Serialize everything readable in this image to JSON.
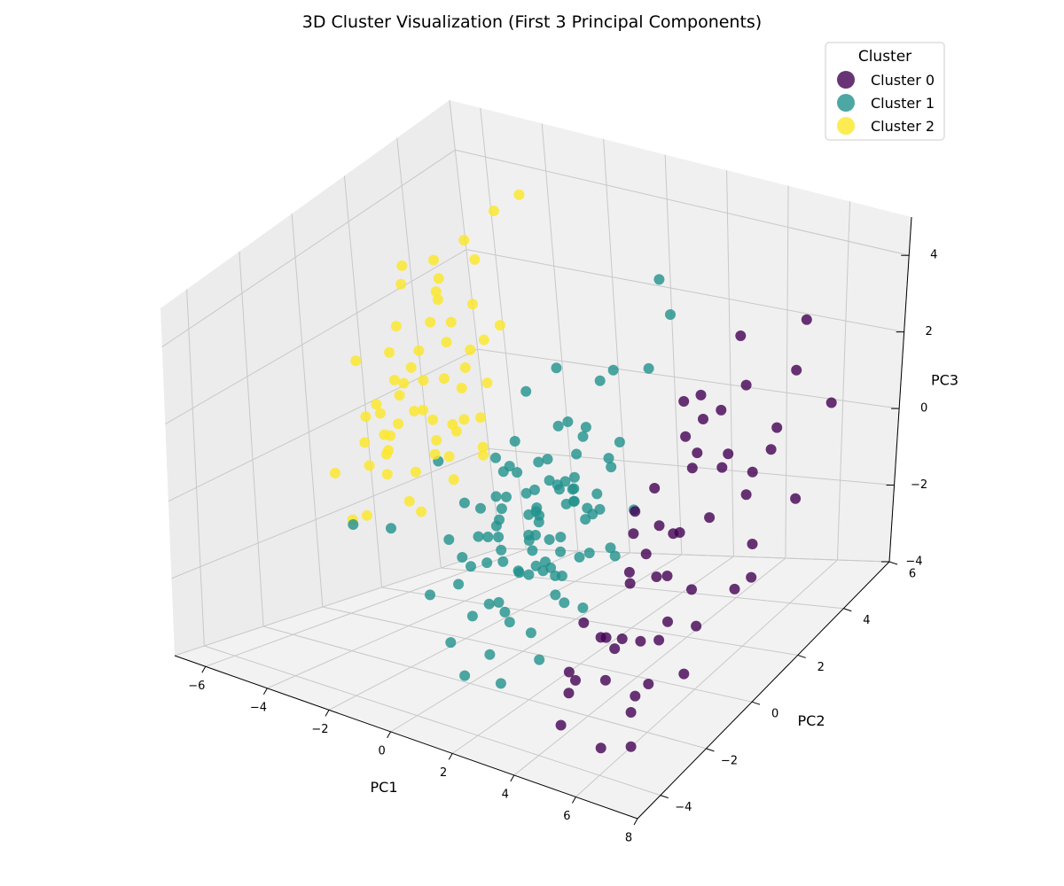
{
  "chart_data": {
    "type": "scatter",
    "title": "3D Cluster Visualization (First 3 Principal Components)",
    "xlabel": "PC1",
    "ylabel": "PC2",
    "zlabel": "PC3",
    "xlim": [
      -7,
      8
    ],
    "ylim": [
      -5,
      6
    ],
    "zlim": [
      -4,
      5
    ],
    "xticks": [
      -6,
      -4,
      -2,
      0,
      2,
      4,
      6,
      8
    ],
    "yticks": [
      -4,
      -2,
      0,
      2,
      4,
      6
    ],
    "zticks": [
      -4,
      -2,
      0,
      2,
      4
    ],
    "grid": true,
    "legend": {
      "title": "Cluster",
      "position": "top-right"
    },
    "series": [
      {
        "name": "Cluster 0",
        "color": "#440154",
        "points": [
          [
            5.2,
            -1.5,
            -3.5
          ],
          [
            4.8,
            -2.2,
            -2.8
          ],
          [
            5.8,
            -1.2,
            -2.1
          ],
          [
            4.2,
            -0.8,
            -2.6
          ],
          [
            6.1,
            -2.8,
            -3.9
          ],
          [
            3.8,
            -2.5,
            -3.2
          ],
          [
            5.5,
            0.5,
            -1.8
          ],
          [
            4.5,
            1.2,
            -0.9
          ],
          [
            6.5,
            1.8,
            -1.2
          ],
          [
            5.1,
            2.2,
            0.3
          ],
          [
            4.2,
            2.5,
            1.2
          ],
          [
            6.8,
            3.2,
            -0.8
          ],
          [
            5.6,
            3.8,
            0.5
          ],
          [
            7.2,
            4.1,
            1.2
          ],
          [
            3.5,
            1.0,
            -1.5
          ],
          [
            4.8,
            -1.8,
            -2.2
          ],
          [
            5.9,
            0.2,
            -2.5
          ],
          [
            3.2,
            -0.5,
            -2.9
          ],
          [
            6.3,
            -0.8,
            -3.1
          ],
          [
            4.1,
            -3.2,
            -3.6
          ],
          [
            5.4,
            2.8,
            2.1
          ],
          [
            4.6,
            3.5,
            2.8
          ],
          [
            6.2,
            4.2,
            3.1
          ],
          [
            5.0,
            1.5,
            2.5
          ],
          [
            3.9,
            2.1,
            1.8
          ],
          [
            4.9,
            -0.2,
            -1.2
          ],
          [
            5.7,
            1.0,
            -0.2
          ],
          [
            4.4,
            0.8,
            -1.8
          ],
          [
            3.6,
            -1.6,
            -1.9
          ],
          [
            6.0,
            -1.9,
            -2.8
          ],
          [
            4.3,
            -0.3,
            0.4
          ],
          [
            5.3,
            0.8,
            1.1
          ],
          [
            3.7,
            0.3,
            -0.6
          ],
          [
            6.6,
            2.4,
            0.9
          ],
          [
            4.7,
            2.9,
            0.2
          ],
          [
            5.8,
            -2.4,
            -3.3
          ],
          [
            4.0,
            -1.2,
            -2.4
          ],
          [
            3.4,
            -2.0,
            -3.0
          ],
          [
            6.9,
            0.6,
            -1.6
          ],
          [
            5.2,
            3.3,
            -0.4
          ],
          [
            4.6,
            1.8,
            0.8
          ],
          [
            3.3,
            1.6,
            -0.2
          ],
          [
            5.6,
            -0.6,
            -2.0
          ],
          [
            4.9,
            2.4,
            1.6
          ],
          [
            6.4,
            3.6,
            2.2
          ],
          [
            3.1,
            0.8,
            -2.2
          ],
          [
            4.3,
            -2.8,
            -2.6
          ],
          [
            5.5,
            -3.3,
            -3.8
          ],
          [
            6.7,
            1.3,
            0.4
          ],
          [
            4.1,
            1.4,
            -1.1
          ],
          [
            3.8,
            0.0,
            -1.4
          ],
          [
            5.0,
            -1.0,
            -2.4
          ],
          [
            4.5,
            0.4,
            -0.3
          ],
          [
            6.3,
            2.0,
            -2.2
          ],
          [
            3.5,
            2.6,
            0.6
          ]
        ]
      },
      {
        "name": "Cluster 1",
        "color": "#21918c",
        "points": [
          [
            0.5,
            0.2,
            -0.5
          ],
          [
            1.2,
            0.8,
            -0.2
          ],
          [
            -0.3,
            -0.4,
            -1.1
          ],
          [
            0.8,
            -0.9,
            -1.5
          ],
          [
            1.6,
            0.1,
            0.4
          ],
          [
            0.1,
            1.1,
            0.2
          ],
          [
            -0.8,
            0.3,
            -0.8
          ],
          [
            1.9,
            -0.5,
            -1.0
          ],
          [
            0.4,
            -1.6,
            -2.1
          ],
          [
            2.3,
            0.6,
            -0.4
          ],
          [
            -1.2,
            -0.8,
            -1.6
          ],
          [
            1.0,
            1.6,
            0.9
          ],
          [
            0.0,
            -0.2,
            0.6
          ],
          [
            2.6,
            -1.2,
            -1.8
          ],
          [
            -0.5,
            1.4,
            -0.1
          ],
          [
            1.4,
            -0.2,
            -2.3
          ],
          [
            0.7,
            0.9,
            1.2
          ],
          [
            -1.6,
            -0.2,
            -0.6
          ],
          [
            2.0,
            1.4,
            0.2
          ],
          [
            0.3,
            -1.1,
            -0.4
          ],
          [
            1.7,
            -1.5,
            -2.6
          ],
          [
            -0.1,
            0.5,
            -1.4
          ],
          [
            0.9,
            -0.6,
            0.3
          ],
          [
            2.9,
            0.3,
            -1.1
          ],
          [
            -0.9,
            -1.3,
            -2.0
          ],
          [
            1.1,
            0.4,
            -1.2
          ],
          [
            0.2,
            1.8,
            0.8
          ],
          [
            1.5,
            1.0,
            -0.7
          ],
          [
            -0.4,
            -0.9,
            -0.2
          ],
          [
            2.2,
            -0.8,
            -1.4
          ],
          [
            0.6,
            -0.3,
            -1.9
          ],
          [
            -1.4,
            0.8,
            0.1
          ],
          [
            1.8,
            0.2,
            -0.1
          ],
          [
            0.0,
            -1.8,
            -2.4
          ],
          [
            2.5,
            1.2,
            1.0
          ],
          [
            -0.7,
            0.1,
            -1.7
          ],
          [
            1.3,
            -1.0,
            -0.6
          ],
          [
            0.5,
            1.3,
            -0.9
          ],
          [
            -0.2,
            -0.6,
            -2.6
          ],
          [
            2.1,
            -0.1,
            0.7
          ],
          [
            3.0,
            1.8,
            2.6
          ],
          [
            3.4,
            2.2,
            3.8
          ],
          [
            2.7,
            2.6,
            4.3
          ],
          [
            1.9,
            1.7,
            2.4
          ],
          [
            0.8,
            2.4,
            1.6
          ],
          [
            -1.0,
            1.6,
            1.4
          ],
          [
            -3.5,
            -0.9,
            -1.3
          ],
          [
            -4.5,
            -1.2,
            -1.3
          ],
          [
            -2.4,
            0.0,
            -1.7
          ],
          [
            -3.0,
            0.4,
            -0.1
          ],
          [
            0.9,
            -2.2,
            -3.0
          ],
          [
            1.6,
            -2.6,
            -3.4
          ],
          [
            -0.6,
            -2.0,
            -3.1
          ],
          [
            2.4,
            -2.0,
            -2.9
          ],
          [
            0.2,
            -2.4,
            -3.6
          ],
          [
            1.2,
            -1.9,
            -2.0
          ],
          [
            -1.8,
            -1.4,
            -2.4
          ],
          [
            3.2,
            0.9,
            -0.4
          ],
          [
            2.8,
            -0.4,
            -0.9
          ],
          [
            -0.3,
            2.0,
            1.9
          ],
          [
            0.4,
            0.0,
            -0.6
          ],
          [
            1.0,
            -0.1,
            -1.6
          ],
          [
            1.7,
            0.7,
            -0.8
          ],
          [
            -0.6,
            -0.1,
            -0.3
          ],
          [
            0.6,
            0.6,
            0.0
          ],
          [
            1.4,
            -0.7,
            -0.1
          ],
          [
            0.1,
            -0.7,
            -1.5
          ],
          [
            2.0,
            0.1,
            -1.4
          ],
          [
            -0.2,
            0.9,
            -0.5
          ],
          [
            1.1,
            1.1,
            0.5
          ],
          [
            0.3,
            0.3,
            -2.0
          ],
          [
            2.4,
            0.4,
            0.1
          ],
          [
            -1.1,
            0.5,
            -1.2
          ],
          [
            0.8,
            -1.3,
            -2.6
          ],
          [
            1.5,
            0.5,
            -0.3
          ],
          [
            -0.4,
            0.0,
            0.3
          ],
          [
            0.7,
            -0.1,
            -1.0
          ],
          [
            1.9,
            -0.9,
            -0.5
          ],
          [
            0.0,
            0.7,
            -0.9
          ],
          [
            1.3,
            0.2,
            0.1
          ],
          [
            2.6,
            0.8,
            -1.6
          ],
          [
            -0.8,
            -0.6,
            -1.1
          ],
          [
            0.5,
            1.0,
            -0.3
          ],
          [
            1.6,
            -0.4,
            -1.7
          ],
          [
            -0.1,
            -1.0,
            -0.8
          ],
          [
            2.2,
            1.1,
            0.6
          ],
          [
            0.9,
            0.2,
            -1.9
          ],
          [
            -0.5,
            0.6,
            0.0
          ],
          [
            1.2,
            -0.5,
            -0.4
          ],
          [
            0.4,
            -0.8,
            0.2
          ],
          [
            1.8,
            0.6,
            1.3
          ],
          [
            -1.3,
            -0.4,
            -2.0
          ],
          [
            0.1,
            0.4,
            -1.7
          ],
          [
            2.7,
            -0.6,
            -2.2
          ],
          [
            0.6,
            1.5,
            -0.6
          ],
          [
            -0.9,
            1.0,
            0.5
          ],
          [
            1.4,
            1.3,
            -1.0
          ],
          [
            0.2,
            -1.4,
            -1.2
          ],
          [
            2.1,
            -1.4,
            -1.0
          ],
          [
            -0.2,
            0.2,
            -2.2
          ]
        ]
      },
      {
        "name": "Cluster 2",
        "color": "#fde725",
        "points": [
          [
            -4.5,
            1.2,
            1.5
          ],
          [
            -3.8,
            0.8,
            0.8
          ],
          [
            -5.2,
            1.5,
            2.2
          ],
          [
            -4.1,
            2.1,
            1.8
          ],
          [
            -3.2,
            1.6,
            1.1
          ],
          [
            -4.8,
            0.4,
            0.2
          ],
          [
            -3.5,
            2.5,
            2.6
          ],
          [
            -5.5,
            0.9,
            0.6
          ],
          [
            -4.2,
            -0.2,
            -0.4
          ],
          [
            -3.0,
            0.3,
            0.1
          ],
          [
            -5.0,
            2.8,
            3.2
          ],
          [
            -3.7,
            1.9,
            2.4
          ],
          [
            -4.6,
            1.0,
            1.2
          ],
          [
            -2.8,
            1.2,
            0.6
          ],
          [
            -5.8,
            1.8,
            1.4
          ],
          [
            -4.0,
            0.6,
            -0.6
          ],
          [
            -3.4,
            2.2,
            1.7
          ],
          [
            -4.9,
            2.4,
            2.0
          ],
          [
            -3.1,
            0.9,
            -0.2
          ],
          [
            -5.3,
            0.2,
            0.0
          ],
          [
            -4.3,
            3.2,
            3.6
          ],
          [
            -3.6,
            3.6,
            4.2
          ],
          [
            -2.9,
            3.8,
            4.6
          ],
          [
            -5.6,
            2.2,
            2.8
          ],
          [
            -6.0,
            1.0,
            0.2
          ],
          [
            -6.2,
            0.0,
            -0.8
          ],
          [
            -5.1,
            -0.6,
            -1.5
          ],
          [
            -4.4,
            -0.8,
            -1.2
          ],
          [
            -3.3,
            -0.4,
            -0.8
          ],
          [
            -2.6,
            0.5,
            -0.5
          ],
          [
            -4.7,
            1.4,
            0.4
          ],
          [
            -3.9,
            1.3,
            -0.1
          ],
          [
            -5.4,
            1.2,
            -0.2
          ],
          [
            -4.1,
            2.7,
            1.0
          ],
          [
            -3.0,
            2.0,
            0.3
          ],
          [
            -2.5,
            1.5,
            -0.3
          ],
          [
            -4.5,
            0.0,
            0.9
          ],
          [
            -3.8,
            -0.6,
            0.3
          ],
          [
            -5.7,
            0.5,
            1.7
          ],
          [
            -4.0,
            1.8,
            2.9
          ],
          [
            -3.3,
            1.1,
            1.5
          ],
          [
            -2.7,
            0.8,
            0.5
          ],
          [
            -5.9,
            2.6,
            3.0
          ],
          [
            -3.5,
            0.2,
            -1.3
          ],
          [
            -4.8,
            1.9,
            0.9
          ],
          [
            -2.3,
            1.3,
            0.0
          ],
          [
            -3.1,
            2.4,
            1.9
          ],
          [
            -4.2,
            0.3,
            0.6
          ],
          [
            -3.6,
            1.6,
            0.2
          ],
          [
            -5.0,
            0.7,
            -0.3
          ],
          [
            -2.9,
            2.8,
            2.1
          ],
          [
            -4.4,
            2.3,
            3.1
          ],
          [
            -3.9,
            0.1,
            1.4
          ],
          [
            -5.2,
            3.0,
            2.4
          ],
          [
            -2.6,
            1.9,
            1.2
          ],
          [
            -3.7,
            2.9,
            3.4
          ],
          [
            -4.6,
            -0.4,
            -0.2
          ],
          [
            -3.2,
            0.5,
            0.8
          ],
          [
            -5.5,
            1.6,
            0.9
          ],
          [
            -4.1,
            1.1,
            2.0
          ]
        ]
      }
    ]
  }
}
